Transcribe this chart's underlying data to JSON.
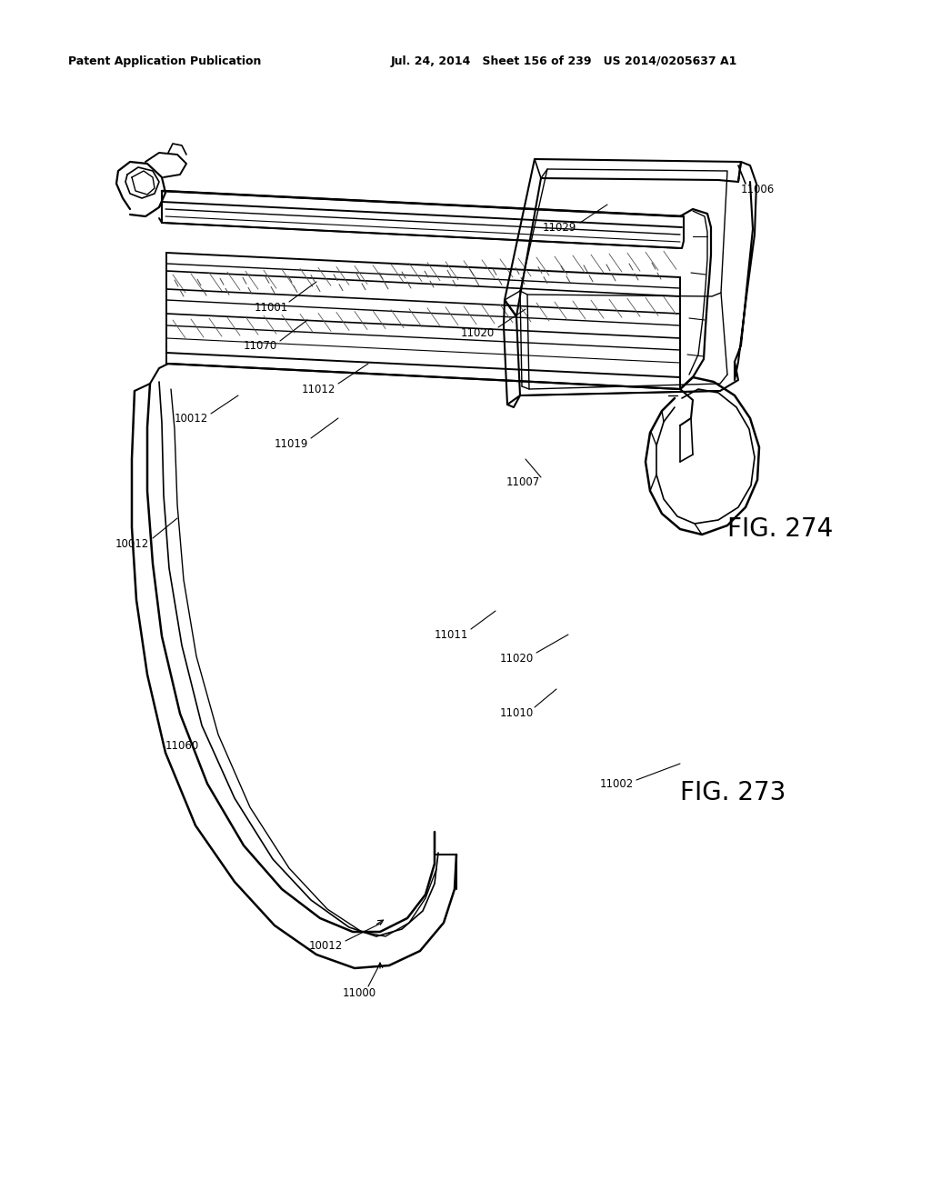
{
  "background_color": "#ffffff",
  "header_left": "Patent Application Publication",
  "header_middle": "Jul. 24, 2014   Sheet 156 of 239   US 2014/0205637 A1",
  "fig273_label": "FIG. 273",
  "fig274_label": "FIG. 274",
  "line_color": "#000000",
  "text_color": "#000000"
}
